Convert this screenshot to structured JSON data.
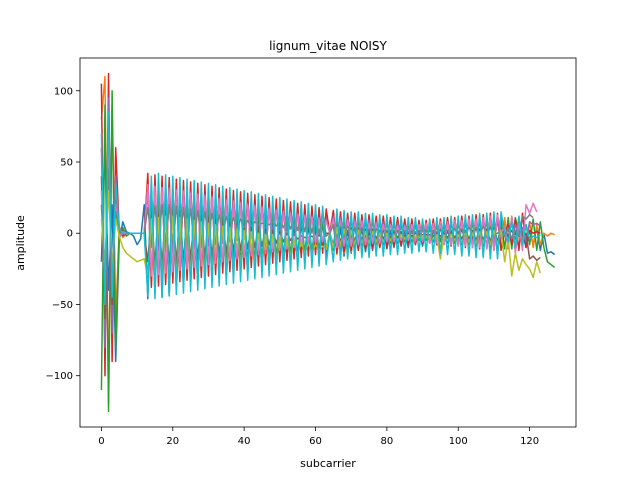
{
  "chart_data": {
    "type": "line",
    "title": "lignum_vitae NOISY",
    "xlabel": "subcarrier",
    "ylabel": "amplitude",
    "xlim": [
      -6,
      133
    ],
    "ylim": [
      -136,
      123
    ],
    "xticks": [
      0,
      20,
      40,
      60,
      80,
      100,
      120
    ],
    "yticks": [
      -100,
      -50,
      0,
      50,
      100
    ],
    "ytick_labels": [
      "−100",
      "−50",
      "0",
      "50",
      "100"
    ],
    "grid": false,
    "legend": "none",
    "num_subcarriers": 128,
    "colors": [
      "#1f77b4",
      "#ff7f0e",
      "#2ca02c",
      "#d62728",
      "#9467bd",
      "#8c564b",
      "#e377c2",
      "#7f7f7f",
      "#bcbd22",
      "#17becf"
    ],
    "series": [
      {
        "color": "#1f77b4",
        "values": [
          -20,
          60,
          -40,
          20,
          -90,
          -5,
          8,
          1,
          0,
          -2,
          -8,
          -4,
          20,
          -46,
          18,
          -42,
          24,
          -45,
          22,
          -44,
          26,
          -40,
          20,
          -38,
          22,
          -36,
          18,
          -36,
          20,
          -34,
          18,
          -33,
          16,
          -32,
          18,
          -31,
          14,
          -30,
          16,
          -29,
          12,
          -28,
          14,
          -26,
          10,
          -25,
          12,
          -24,
          10,
          -23,
          8,
          -22,
          10,
          -21,
          6,
          -20,
          8,
          -19,
          6,
          -18,
          4,
          -17,
          8,
          -16,
          0,
          6,
          -14,
          4,
          -16,
          2,
          -14,
          6,
          -12,
          4,
          -13,
          2,
          -12,
          6,
          -10,
          4,
          -11,
          2,
          -10,
          4,
          -9,
          2,
          -10,
          4,
          -8,
          2,
          -9,
          4,
          -7,
          2,
          -8,
          4,
          -6,
          2,
          -7,
          5,
          -5,
          3,
          -6,
          6,
          -4,
          4,
          -5,
          7,
          -3,
          5,
          -4,
          8,
          -2,
          6,
          -3,
          9,
          -1,
          7,
          0,
          -10,
          2,
          -8,
          4,
          -12,
          0,
          -14,
          -13,
          -15
        ]
      },
      {
        "color": "#ff7f0e",
        "values": [
          80,
          110,
          -120,
          90,
          -60,
          5,
          -3,
          0,
          0,
          0,
          0,
          0,
          0,
          40,
          -35,
          38,
          -34,
          36,
          -33,
          35,
          -32,
          34,
          -31,
          33,
          -30,
          32,
          -29,
          31,
          -28,
          30,
          -27,
          29,
          -26,
          28,
          -25,
          27,
          -24,
          26,
          -23,
          25,
          -22,
          24,
          -21,
          23,
          -20,
          22,
          -19,
          21,
          -18,
          20,
          -17,
          19,
          -16,
          18,
          -15,
          17,
          -14,
          16,
          -13,
          15,
          -12,
          14,
          -11,
          13,
          0,
          15,
          -15,
          14,
          -14,
          13,
          -13,
          12,
          -12,
          11,
          -11,
          10,
          -10,
          10,
          -10,
          9,
          -9,
          9,
          -9,
          8,
          -8,
          8,
          -8,
          7,
          -7,
          7,
          -7,
          6,
          -6,
          6,
          -6,
          7,
          -7,
          7,
          -7,
          8,
          -8,
          8,
          -8,
          9,
          -9,
          9,
          -9,
          10,
          -10,
          10,
          -10,
          11,
          -11,
          11,
          -11,
          12,
          -12,
          0,
          4,
          -6,
          8,
          -10,
          6,
          -8,
          0,
          -2,
          0,
          -1
        ]
      },
      {
        "color": "#2ca02c",
        "values": [
          -110,
          90,
          -125,
          100,
          -80,
          0,
          4,
          -2,
          0,
          0,
          0,
          0,
          0,
          -36,
          32,
          -35,
          31,
          -34,
          30,
          -33,
          29,
          -32,
          28,
          -31,
          27,
          -30,
          26,
          -29,
          25,
          -28,
          24,
          -27,
          23,
          -26,
          22,
          -25,
          21,
          -24,
          20,
          -23,
          19,
          -22,
          18,
          -21,
          17,
          -20,
          16,
          -19,
          15,
          -18,
          14,
          -17,
          13,
          -16,
          12,
          -15,
          11,
          -14,
          10,
          -13,
          9,
          -12,
          8,
          -11,
          0,
          -12,
          12,
          -11,
          11,
          -10,
          10,
          -10,
          10,
          -9,
          9,
          -9,
          9,
          -8,
          8,
          -8,
          8,
          -7,
          7,
          -7,
          7,
          -6,
          6,
          -6,
          6,
          -5,
          5,
          -5,
          5,
          -6,
          6,
          -6,
          6,
          -7,
          7,
          -7,
          7,
          -8,
          8,
          -8,
          8,
          -9,
          9,
          -9,
          9,
          -10,
          10,
          -10,
          10,
          -11,
          11,
          -11,
          11,
          0,
          -4,
          6,
          -8,
          10,
          -12,
          8,
          -10,
          -20,
          -22,
          -24
        ]
      },
      {
        "color": "#d62728",
        "values": [
          105,
          -100,
          112,
          -90,
          60,
          2,
          -2,
          0,
          0,
          0,
          0,
          0,
          0,
          42,
          -38,
          41,
          -37,
          40,
          -36,
          39,
          -35,
          38,
          -34,
          37,
          -33,
          36,
          -32,
          35,
          -31,
          34,
          -30,
          33,
          -29,
          32,
          -28,
          31,
          -27,
          30,
          -26,
          29,
          -25,
          28,
          -24,
          27,
          -23,
          26,
          -22,
          25,
          -21,
          24,
          -20,
          23,
          -19,
          22,
          -18,
          21,
          -17,
          20,
          -16,
          19,
          -15,
          18,
          -14,
          17,
          0,
          16,
          -14,
          15,
          -13,
          14,
          -12,
          14,
          -12,
          13,
          -11,
          13,
          -11,
          12,
          -10,
          12,
          -10,
          11,
          -9,
          11,
          -9,
          10,
          -8,
          10,
          -8,
          9,
          -7,
          9,
          -7,
          10,
          -8,
          10,
          -8,
          11,
          -9,
          11,
          -9,
          12,
          -10,
          12,
          -10,
          13,
          -11,
          13,
          -11,
          14,
          -12,
          14,
          -12,
          0,
          6,
          -8,
          10,
          -12,
          14,
          -10,
          2,
          0,
          1,
          0
        ]
      },
      {
        "color": "#9467bd",
        "values": [
          60,
          -80,
          95,
          -70,
          40,
          4,
          -1,
          0,
          0,
          0,
          0,
          0,
          0,
          28,
          -10,
          30,
          -12,
          31,
          -13,
          32,
          -14,
          31,
          -13,
          30,
          -12,
          29,
          -11,
          28,
          -10,
          27,
          -9,
          26,
          -8,
          25,
          -7,
          24,
          -6,
          23,
          -5,
          22,
          -4,
          21,
          -3,
          20,
          -2,
          19,
          -1,
          18,
          0,
          17,
          1,
          16,
          2,
          15,
          3,
          14,
          4,
          13,
          5,
          12,
          6,
          11,
          7,
          10,
          0,
          12,
          -6,
          11,
          -5,
          10,
          -4,
          10,
          -4,
          9,
          -3,
          9,
          -3,
          8,
          -2,
          8,
          -2,
          7,
          -1,
          7,
          -1,
          6,
          0,
          6,
          0,
          5,
          1,
          5,
          1,
          6,
          0,
          6,
          0,
          7,
          -1,
          7,
          -1,
          8,
          -2,
          8,
          -2,
          9,
          -3,
          9,
          -3,
          10,
          -4,
          10,
          -4,
          0,
          2,
          -4,
          6,
          -2,
          4,
          -6,
          8,
          6,
          7,
          5
        ]
      },
      {
        "color": "#8c564b",
        "values": [
          40,
          -60,
          70,
          -50,
          30,
          0,
          2,
          0,
          0,
          0,
          0,
          0,
          0,
          -20,
          14,
          -21,
          15,
          -22,
          16,
          -22,
          16,
          -21,
          15,
          -20,
          14,
          -19,
          13,
          -18,
          12,
          -17,
          11,
          -16,
          10,
          -15,
          9,
          -14,
          8,
          -13,
          7,
          -12,
          6,
          -11,
          5,
          -10,
          4,
          -9,
          3,
          -8,
          2,
          -7,
          1,
          -6,
          0,
          -5,
          -1,
          -4,
          -2,
          -3,
          -3,
          -2,
          -4,
          -1,
          -5,
          0,
          0,
          -8,
          6,
          -7,
          5,
          -6,
          4,
          -6,
          4,
          -5,
          3,
          -5,
          3,
          -4,
          2,
          -4,
          2,
          -3,
          1,
          -3,
          1,
          -2,
          0,
          -2,
          0,
          -1,
          -1,
          -1,
          -1,
          -2,
          0,
          -2,
          0,
          -3,
          1,
          -3,
          1,
          -4,
          2,
          -4,
          2,
          -5,
          3,
          -5,
          3,
          -6,
          4,
          -6,
          4,
          0,
          -2,
          2,
          -4,
          4,
          -2,
          0,
          -18,
          -16,
          -19,
          -17
        ]
      },
      {
        "color": "#e377c2",
        "values": [
          30,
          -40,
          55,
          -35,
          20,
          -2,
          1,
          0,
          0,
          0,
          0,
          0,
          0,
          34,
          -30,
          33,
          -29,
          32,
          -28,
          31,
          -27,
          30,
          -26,
          29,
          -25,
          28,
          -24,
          27,
          -23,
          26,
          -22,
          25,
          -21,
          24,
          -20,
          23,
          -19,
          22,
          -18,
          21,
          -17,
          20,
          -16,
          19,
          -15,
          18,
          -14,
          17,
          -13,
          16,
          -12,
          15,
          -11,
          14,
          -10,
          13,
          -9,
          12,
          -8,
          11,
          -7,
          10,
          -6,
          9,
          0,
          10,
          -10,
          9,
          -9,
          9,
          -9,
          8,
          -8,
          8,
          -8,
          7,
          -7,
          7,
          -7,
          6,
          -6,
          6,
          -6,
          5,
          -5,
          5,
          -5,
          6,
          -6,
          6,
          -6,
          7,
          -7,
          7,
          -7,
          8,
          -8,
          8,
          -8,
          9,
          -9,
          9,
          -9,
          10,
          -10,
          10,
          -10,
          11,
          -11,
          12,
          -12,
          13,
          0,
          5,
          -10,
          12,
          -14,
          8,
          -12,
          20,
          14,
          21,
          15
        ]
      },
      {
        "color": "#7f7f7f",
        "values": [
          20,
          -30,
          45,
          -28,
          15,
          1,
          0,
          0,
          0,
          0,
          0,
          0,
          0,
          18,
          -4,
          19,
          -5,
          20,
          -6,
          20,
          -6,
          19,
          -5,
          18,
          -4,
          17,
          -3,
          16,
          -2,
          15,
          -1,
          14,
          0,
          13,
          1,
          12,
          2,
          11,
          3,
          10,
          4,
          9,
          5,
          8,
          6,
          7,
          7,
          6,
          8,
          5,
          9,
          4,
          10,
          3,
          11,
          2,
          12,
          1,
          13,
          0,
          14,
          -1,
          15,
          -2,
          0,
          6,
          -2,
          5,
          -1,
          5,
          -1,
          4,
          0,
          4,
          0,
          3,
          1,
          3,
          1,
          2,
          2,
          2,
          2,
          1,
          3,
          1,
          3,
          0,
          4,
          0,
          4,
          1,
          3,
          1,
          3,
          2,
          2,
          2,
          2,
          3,
          1,
          3,
          1,
          4,
          0,
          4,
          0,
          5,
          -1,
          5,
          -1,
          0,
          2,
          -2,
          4,
          -4,
          2,
          -2,
          12,
          10,
          13,
          11
        ]
      },
      {
        "color": "#bcbd22",
        "values": [
          10,
          -20,
          30,
          -25,
          10,
          -2,
          -10,
          -14,
          -16,
          -18,
          -20,
          -19,
          -18,
          -30,
          10,
          -32,
          11,
          -33,
          12,
          -33,
          12,
          -32,
          11,
          -31,
          10,
          -30,
          9,
          -29,
          8,
          -28,
          7,
          -27,
          6,
          -26,
          5,
          -25,
          4,
          -24,
          3,
          -23,
          2,
          -22,
          1,
          -21,
          0,
          -20,
          -1,
          -19,
          -2,
          -18,
          -3,
          -17,
          -4,
          -16,
          -5,
          -15,
          -6,
          -14,
          -7,
          -13,
          -8,
          -12,
          -9,
          -11,
          0,
          -10,
          4,
          -9,
          3,
          -8,
          2,
          -8,
          2,
          -7,
          1,
          -7,
          1,
          -6,
          0,
          -6,
          0,
          -5,
          -1,
          -5,
          -1,
          -4,
          -2,
          -4,
          -2,
          -3,
          -3,
          -3,
          -3,
          -4,
          -2,
          -18,
          -2,
          -5,
          -1,
          -5,
          -1,
          -6,
          0,
          -6,
          0,
          -7,
          1,
          -7,
          1,
          -8,
          2,
          -8,
          2,
          -20,
          -4,
          -30,
          -14,
          -26,
          -18,
          -22,
          -25,
          -31,
          -20,
          -28
        ]
      },
      {
        "color": "#17becf",
        "values": [
          70,
          -50,
          85,
          -45,
          35,
          3,
          0,
          0,
          0,
          0,
          0,
          0,
          0,
          -44,
          40,
          -46,
          42,
          -45,
          41,
          -44,
          40,
          -43,
          39,
          -42,
          38,
          -41,
          37,
          -40,
          36,
          -39,
          35,
          -38,
          34,
          -37,
          33,
          -36,
          32,
          -35,
          31,
          -34,
          30,
          -33,
          29,
          -32,
          28,
          -31,
          27,
          -30,
          26,
          -29,
          25,
          -28,
          24,
          -27,
          23,
          -26,
          22,
          -25,
          21,
          -24,
          20,
          -23,
          19,
          -22,
          0,
          -20,
          17,
          -19,
          16,
          -18,
          15,
          -18,
          15,
          -17,
          14,
          -17,
          14,
          -16,
          13,
          -16,
          13,
          -15,
          12,
          -15,
          12,
          -14,
          11,
          -14,
          11,
          -13,
          10,
          -13,
          10,
          -14,
          11,
          -14,
          11,
          -15,
          12,
          -15,
          12,
          -16,
          13,
          -16,
          13,
          -17,
          14,
          -17,
          14,
          -18,
          15,
          -18,
          15,
          0,
          -6,
          8,
          -10,
          12,
          -8,
          6,
          -4,
          -2,
          -3,
          -1
        ]
      }
    ]
  }
}
